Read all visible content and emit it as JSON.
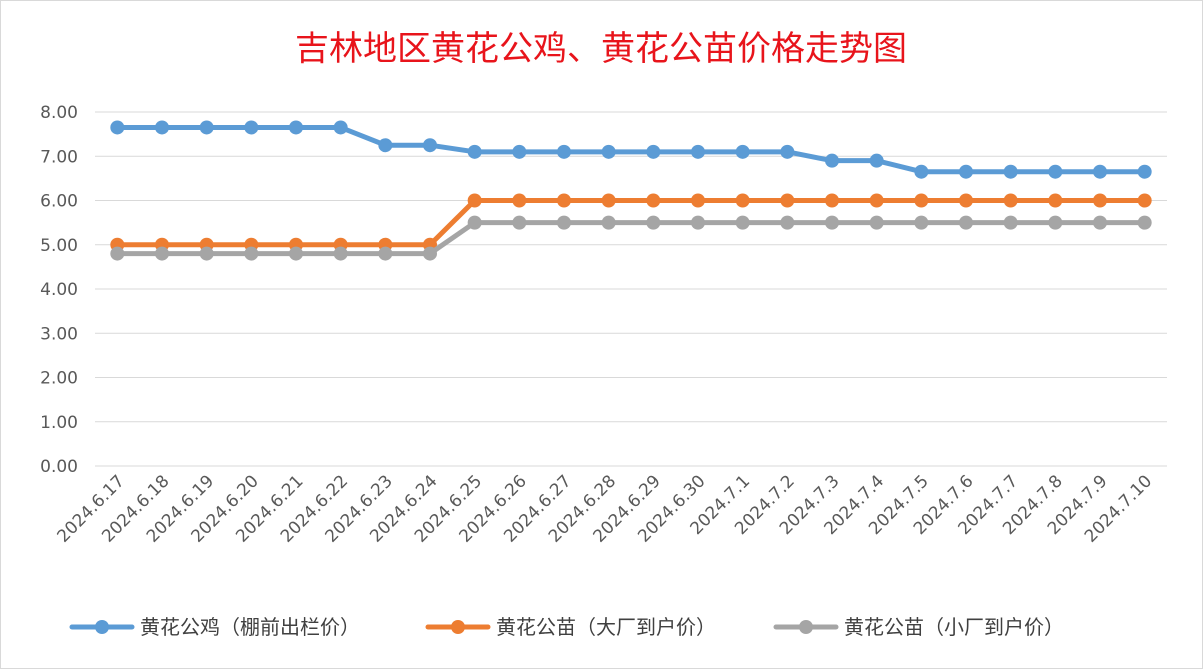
{
  "chart_data": {
    "type": "line",
    "title": "吉林地区黄花公鸡、黄花公苗价格走势图",
    "categories": [
      "2024.6.17",
      "2024.6.18",
      "2024.6.19",
      "2024.6.20",
      "2024.6.21",
      "2024.6.22",
      "2024.6.23",
      "2024.6.24",
      "2024.6.25",
      "2024.6.26",
      "2024.6.27",
      "2024.6.28",
      "2024.6.29",
      "2024.6.30",
      "2024.7.1",
      "2024.7.2",
      "2024.7.3",
      "2024.7.4",
      "2024.7.5",
      "2024.7.6",
      "2024.7.7",
      "2024.7.8",
      "2024.7.9",
      "2024.7.10"
    ],
    "y_ticks": [
      "0.00",
      "1.00",
      "2.00",
      "3.00",
      "4.00",
      "5.00",
      "6.00",
      "7.00",
      "8.00"
    ],
    "ylim": [
      0,
      8
    ],
    "grid": true,
    "legend_position": "bottom",
    "series": [
      {
        "name": "黄花公鸡（棚前出栏价）",
        "color": "#5b9bd5",
        "values": [
          7.65,
          7.65,
          7.65,
          7.65,
          7.65,
          7.65,
          7.25,
          7.25,
          7.1,
          7.1,
          7.1,
          7.1,
          7.1,
          7.1,
          7.1,
          7.1,
          6.9,
          6.9,
          6.65,
          6.65,
          6.65,
          6.65,
          6.65,
          6.65
        ]
      },
      {
        "name": "黄花公苗（大厂到户价）",
        "color": "#ed7d31",
        "values": [
          5.0,
          5.0,
          5.0,
          5.0,
          5.0,
          5.0,
          5.0,
          5.0,
          6.0,
          6.0,
          6.0,
          6.0,
          6.0,
          6.0,
          6.0,
          6.0,
          6.0,
          6.0,
          6.0,
          6.0,
          6.0,
          6.0,
          6.0,
          6.0
        ]
      },
      {
        "name": "黄花公苗（小厂到户价）",
        "color": "#a5a5a5",
        "values": [
          4.8,
          4.8,
          4.8,
          4.8,
          4.8,
          4.8,
          4.8,
          4.8,
          5.5,
          5.5,
          5.5,
          5.5,
          5.5,
          5.5,
          5.5,
          5.5,
          5.5,
          5.5,
          5.5,
          5.5,
          5.5,
          5.5,
          5.5,
          5.5
        ]
      }
    ]
  }
}
